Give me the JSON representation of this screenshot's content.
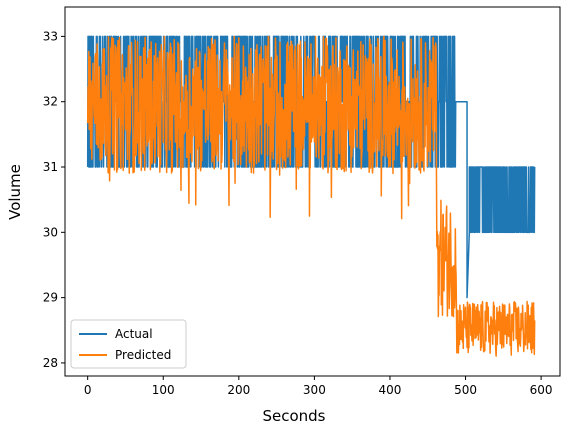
{
  "chart_data": {
    "type": "line",
    "title": "",
    "xlabel": "Seconds",
    "ylabel": "Volume",
    "xlim": [
      -30,
      625
    ],
    "ylim": [
      27.8,
      33.45
    ],
    "x_ticks": [
      0,
      100,
      200,
      300,
      400,
      500,
      600
    ],
    "x_tick_labels": [
      "0",
      "100",
      "200",
      "300",
      "400",
      "500",
      "600"
    ],
    "y_ticks": [
      28,
      29,
      30,
      31,
      32,
      33
    ],
    "y_tick_labels": [
      "28",
      "29",
      "30",
      "31",
      "32",
      "33"
    ],
    "grid": false,
    "legend_position": "lower-left",
    "series": [
      {
        "name": "Actual",
        "color": "#1f77b4",
        "segments": [
          {
            "x_start": 0,
            "x_end": 487,
            "pattern": "oscillating",
            "values": [
              31,
              32,
              33
            ]
          },
          {
            "x_start": 487,
            "x_end": 502,
            "pattern": "constant",
            "values": [
              32
            ]
          },
          {
            "x_start": 502,
            "x_end": 505,
            "pattern": "dip",
            "values": [
              29
            ]
          },
          {
            "x_start": 505,
            "x_end": 592,
            "pattern": "oscillating",
            "values": [
              30,
              31
            ]
          }
        ]
      },
      {
        "name": "Predicted",
        "color": "#ff7f0e",
        "segments": [
          {
            "x_start": 0,
            "x_end": 462,
            "pattern": "noisy",
            "range": [
              30.9,
              33.0
            ],
            "spikes_min": 30.0
          },
          {
            "x_start": 462,
            "x_end": 488,
            "pattern": "noisy",
            "range": [
              28.7,
              30.5
            ]
          },
          {
            "x_start": 488,
            "x_end": 592,
            "pattern": "noisy",
            "range": [
              28.1,
              28.95
            ]
          }
        ]
      }
    ]
  }
}
